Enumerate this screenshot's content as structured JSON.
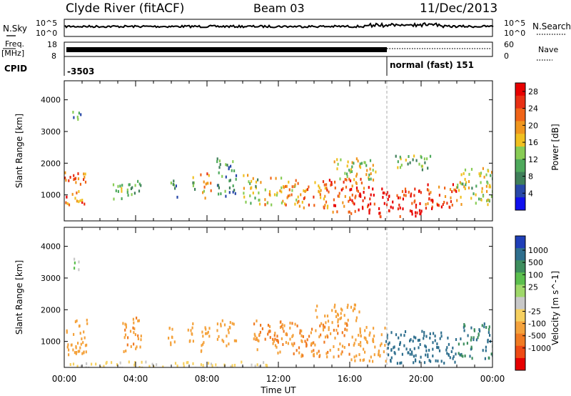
{
  "header": {
    "title": "Clyde River (fitACF)",
    "beam": "Beam 03",
    "date": "11/Dec/2013"
  },
  "status_panel": {
    "nsky_label": "N.Sky",
    "nsearch_label": "N.Search",
    "noise_ticks": [
      "10^5",
      "10^0"
    ],
    "freq_label_top": "Freq.",
    "freq_label_unit": "[MHz]",
    "freq_ticks": [
      "18",
      "8"
    ],
    "nave_label": "Nave",
    "nave_ticks": [
      "60",
      "0"
    ],
    "cpid_label": "CPID",
    "cpid_segments": [
      {
        "start_hour": 0,
        "text": "-3503"
      },
      {
        "start_hour": 18,
        "text": "normal (fast) 151"
      }
    ]
  },
  "time_axis": {
    "label": "Time UT",
    "ticks": [
      "00:00",
      "04:00",
      "08:00",
      "12:00",
      "16:00",
      "20:00",
      "00:00"
    ],
    "range_hours": [
      0,
      24
    ]
  },
  "range_axis": {
    "label": "Slant Range [km]",
    "ticks": [
      1000,
      2000,
      3000,
      4000
    ],
    "range_km": [
      180,
      4600
    ]
  },
  "power_colorbar": {
    "label": "Power [dB]",
    "ticks": [
      "28",
      "24",
      "20",
      "16",
      "12",
      "8",
      "4"
    ],
    "range": [
      0,
      30
    ],
    "colors": [
      "#1010ee",
      "#2848a8",
      "#3f7f5a",
      "#4ea95c",
      "#88cc55",
      "#f0c020",
      "#f0961e",
      "#f06418",
      "#e83014",
      "#e80000"
    ]
  },
  "velocity_colorbar": {
    "label": "Velocity [m s^-1]",
    "ticks": [
      "1000",
      "500",
      "100",
      "25",
      "-25",
      "-100",
      "-500",
      "-1000"
    ],
    "colors": [
      "#1f3fb8",
      "#2f6f8e",
      "#3e8e5e",
      "#5cbf4e",
      "#9fd86a",
      "#c8c8c8",
      "#f6d060",
      "#f4a23c",
      "#f07a22",
      "#ee4a14",
      "#e60000"
    ]
  },
  "chart_data": [
    {
      "type": "heatmap",
      "panel": "power",
      "x": "Time UT (hours)",
      "y": "Slant Range [km]",
      "xlim": [
        0,
        24
      ],
      "ylim": [
        180,
        4600
      ],
      "value_label": "Power [dB]",
      "blobs": [
        {
          "t0": 0.0,
          "t1": 1.2,
          "r0": 700,
          "r1": 1750,
          "v": 22
        },
        {
          "t0": 0.3,
          "t1": 0.9,
          "r0": 3300,
          "r1": 3700,
          "v": 8
        },
        {
          "t0": 2.6,
          "t1": 3.3,
          "r0": 900,
          "r1": 1450,
          "v": 13
        },
        {
          "t0": 3.4,
          "t1": 4.3,
          "r0": 1000,
          "r1": 1600,
          "v": 11
        },
        {
          "t0": 5.8,
          "t1": 6.3,
          "r0": 950,
          "r1": 1500,
          "v": 10
        },
        {
          "t0": 6.9,
          "t1": 7.3,
          "r0": 1050,
          "r1": 1600,
          "v": 12
        },
        {
          "t0": 7.6,
          "t1": 8.2,
          "r0": 900,
          "r1": 1800,
          "v": 20
        },
        {
          "t0": 8.5,
          "t1": 9.6,
          "r0": 1000,
          "r1": 2200,
          "v": 9
        },
        {
          "t0": 10.0,
          "t1": 11.0,
          "r0": 700,
          "r1": 1700,
          "v": 14
        },
        {
          "t0": 11.2,
          "t1": 13.0,
          "r0": 700,
          "r1": 1600,
          "v": 19
        },
        {
          "t0": 13.0,
          "t1": 14.8,
          "r0": 600,
          "r1": 1500,
          "v": 21
        },
        {
          "t0": 14.8,
          "t1": 17.0,
          "r0": 450,
          "r1": 1550,
          "v": 24
        },
        {
          "t0": 17.0,
          "t1": 20.0,
          "r0": 350,
          "r1": 1300,
          "v": 28
        },
        {
          "t0": 20.0,
          "t1": 22.0,
          "r0": 600,
          "r1": 1400,
          "v": 24
        },
        {
          "t0": 22.0,
          "t1": 24.0,
          "r0": 700,
          "r1": 1900,
          "v": 14
        },
        {
          "t0": 15.0,
          "t1": 17.5,
          "r0": 1500,
          "r1": 2200,
          "v": 15
        },
        {
          "t0": 18.5,
          "t1": 20.5,
          "r0": 1800,
          "r1": 2300,
          "v": 12
        }
      ]
    },
    {
      "type": "heatmap",
      "panel": "velocity",
      "x": "Time UT (hours)",
      "y": "Slant Range [km]",
      "xlim": [
        0,
        24
      ],
      "ylim": [
        180,
        4600
      ],
      "value_label": "Velocity [m s^-1]",
      "blobs": [
        {
          "t0": 0.0,
          "t1": 1.3,
          "r0": 600,
          "r1": 1750,
          "v": -300
        },
        {
          "t0": 0.4,
          "t1": 0.9,
          "r0": 3300,
          "r1": 3700,
          "v": 0
        },
        {
          "t0": 3.2,
          "t1": 4.3,
          "r0": 700,
          "r1": 1800,
          "v": -400
        },
        {
          "t0": 5.8,
          "t1": 6.2,
          "r0": 900,
          "r1": 1800,
          "v": -300
        },
        {
          "t0": 6.9,
          "t1": 7.3,
          "r0": 900,
          "r1": 1800,
          "v": -200
        },
        {
          "t0": 7.6,
          "t1": 8.1,
          "r0": 700,
          "r1": 1800,
          "v": -300
        },
        {
          "t0": 8.5,
          "t1": 9.6,
          "r0": 900,
          "r1": 1700,
          "v": -200
        },
        {
          "t0": 10.5,
          "t1": 13.0,
          "r0": 650,
          "r1": 1700,
          "v": -500
        },
        {
          "t0": 13.0,
          "t1": 16.0,
          "r0": 550,
          "r1": 1600,
          "v": -500
        },
        {
          "t0": 16.0,
          "t1": 18.0,
          "r0": 400,
          "r1": 1500,
          "v": -300
        },
        {
          "t0": 18.0,
          "t1": 22.0,
          "r0": 350,
          "r1": 1400,
          "v": 300
        },
        {
          "t0": 22.0,
          "t1": 24.0,
          "r0": 500,
          "r1": 1600,
          "v": 100
        },
        {
          "t0": 14.0,
          "t1": 16.5,
          "r0": 1600,
          "r1": 2200,
          "v": -200
        },
        {
          "t0": 0.0,
          "t1": 12.0,
          "r0": 180,
          "r1": 400,
          "v": -40
        }
      ]
    }
  ]
}
